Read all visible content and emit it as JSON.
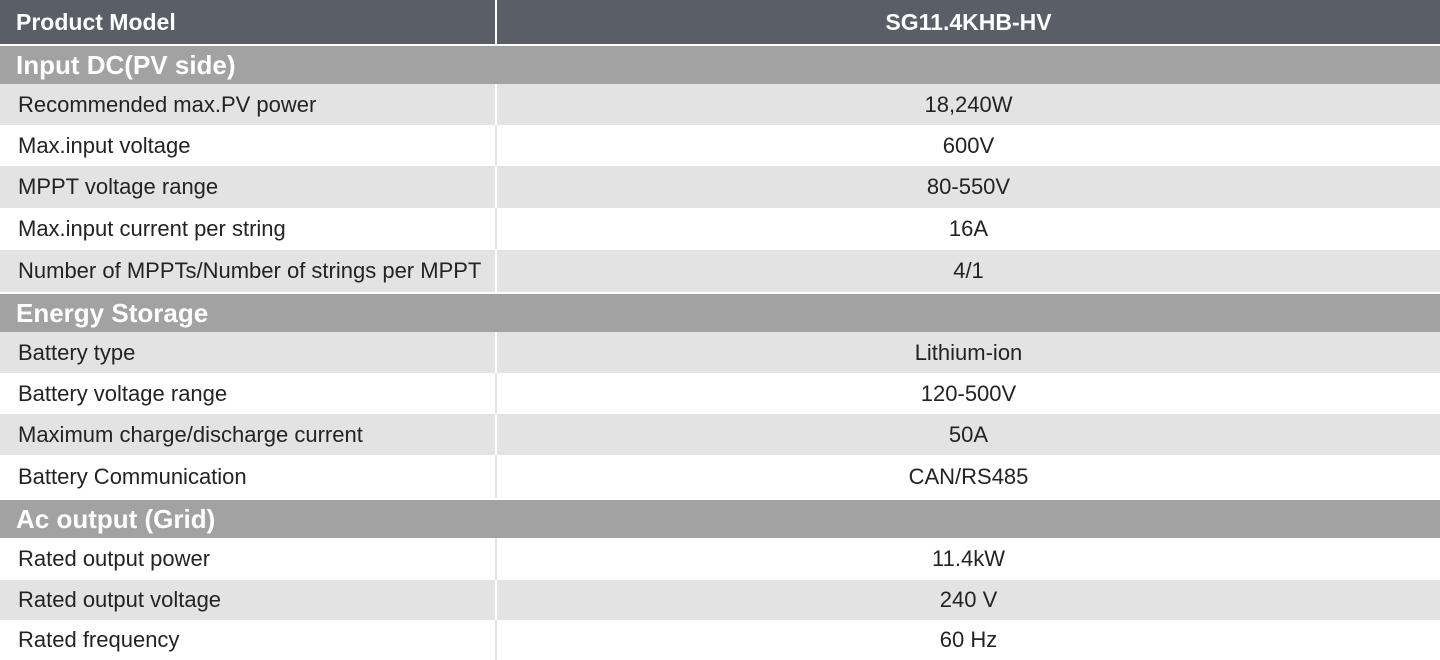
{
  "header": {
    "label": "Product Model",
    "model": "SG11.4KHB-HV"
  },
  "sections": [
    {
      "title": "Input DC(PV side)",
      "rows": [
        {
          "label": "Recommended max.PV power",
          "value": "18,240W"
        },
        {
          "label": "Max.input voltage",
          "value": "600V"
        },
        {
          "label": "MPPT voltage range",
          "value": "80-550V"
        },
        {
          "label": "Max.input current per string",
          "value": "16A"
        },
        {
          "label": "Number of MPPTs/Number of strings per MPPT",
          "value": "4/1"
        }
      ]
    },
    {
      "title": "Energy Storage",
      "rows": [
        {
          "label": "Battery type",
          "value": "Lithium-ion"
        },
        {
          "label": "Battery voltage range",
          "value": "120-500V"
        },
        {
          "label": "Maximum charge/discharge current",
          "value": "50A"
        },
        {
          "label": "Battery Communication",
          "value": "CAN/RS485"
        }
      ]
    },
    {
      "title": "Ac output (Grid)",
      "rows": [
        {
          "label": "Rated output power",
          "value": "11.4kW"
        },
        {
          "label": "Rated output voltage",
          "value": "240 V"
        },
        {
          "label": "Rated frequency",
          "value": "60 Hz"
        }
      ]
    }
  ]
}
